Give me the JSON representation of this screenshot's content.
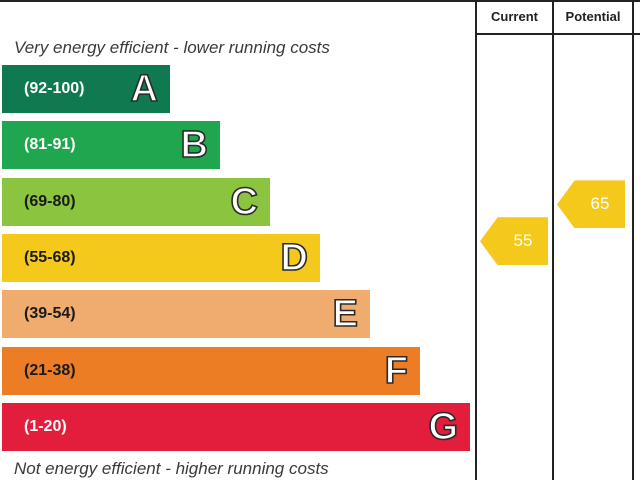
{
  "chart_data": {
    "type": "bar",
    "header": {
      "current": "Current",
      "potential": "Potential"
    },
    "top_note": "Very energy efficient - lower running costs",
    "bottom_note": "Not energy efficient - higher running costs",
    "bands": [
      {
        "range": "(92-100)",
        "letter": "A",
        "color": "#0f7a4f",
        "text_color": "#ffffff"
      },
      {
        "range": "(81-91)",
        "letter": "B",
        "color": "#1fa64f",
        "text_color": "#ffffff"
      },
      {
        "range": "(69-80)",
        "letter": "C",
        "color": "#8bc43f",
        "text_color": "#1a1a1a"
      },
      {
        "range": "(55-68)",
        "letter": "D",
        "color": "#f5c81c",
        "text_color": "#1a1a1a"
      },
      {
        "range": "(39-54)",
        "letter": "E",
        "color": "#efac6e",
        "text_color": "#1a1a1a"
      },
      {
        "range": "(21-38)",
        "letter": "F",
        "color": "#ec7d25",
        "text_color": "#1a1a1a"
      },
      {
        "range": "(1-20)",
        "letter": "G",
        "color": "#e31d3c",
        "text_color": "#ffffff"
      }
    ],
    "current": {
      "value": 55,
      "band": "D",
      "color": "#f5c81c"
    },
    "potential": {
      "value": 65,
      "band": "D",
      "color": "#f5c81c"
    }
  }
}
